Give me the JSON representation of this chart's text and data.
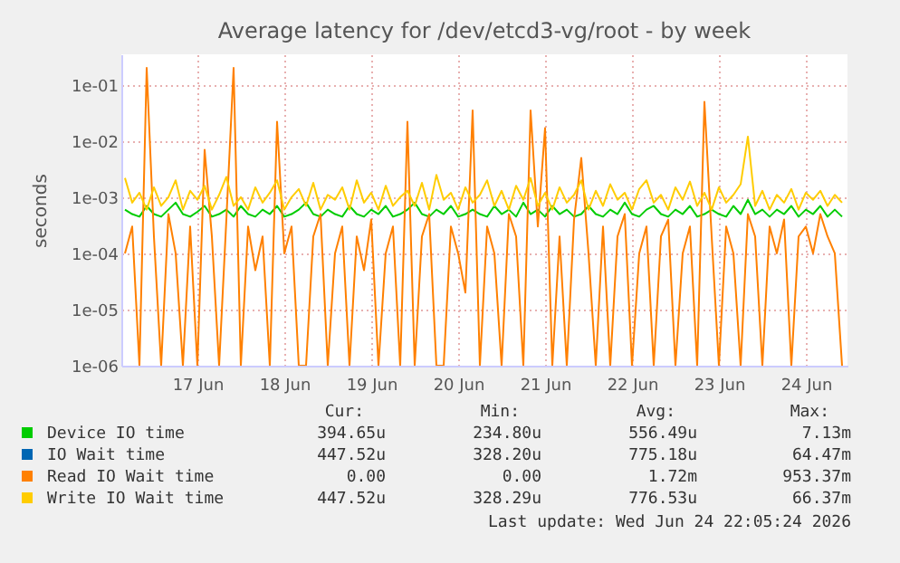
{
  "chart_data": {
    "type": "line",
    "title": "Average latency for /dev/etcd3-vg/root - by week",
    "ylabel": "seconds",
    "log": true,
    "grid": true,
    "legend": "bottom",
    "marker": "none",
    "line_style": "solid",
    "xlim": [
      "2026-06-16T15:00",
      "2026-06-24T23:30"
    ],
    "xticks": [
      {
        "value": "2026-06-17T12:00",
        "label": "17 Jun"
      },
      {
        "value": "2026-06-18T12:00",
        "label": "18 Jun"
      },
      {
        "value": "2026-06-19T12:00",
        "label": "19 Jun"
      },
      {
        "value": "2026-06-20T12:00",
        "label": "20 Jun"
      },
      {
        "value": "2026-06-21T12:00",
        "label": "21 Jun"
      },
      {
        "value": "2026-06-22T12:00",
        "label": "22 Jun"
      },
      {
        "value": "2026-06-23T12:00",
        "label": "23 Jun"
      },
      {
        "value": "2026-06-24T12:00",
        "label": "24 Jun"
      }
    ],
    "ylim": [
      1e-06,
      0.35
    ],
    "yticks": [
      {
        "value": 1e-06,
        "label": "1e-06"
      },
      {
        "value": 1e-05,
        "label": "1e-05"
      },
      {
        "value": 0.0001,
        "label": "1e-04"
      },
      {
        "value": 0.001,
        "label": "1e-03"
      },
      {
        "value": 0.01,
        "label": "1e-02"
      },
      {
        "value": 0.1,
        "label": "1e-01"
      }
    ],
    "x": [
      "2026-06-16T16:00",
      "2026-06-16T18:00",
      "2026-06-16T20:00",
      "2026-06-16T22:00",
      "2026-06-17T00:00",
      "2026-06-17T02:00",
      "2026-06-17T04:00",
      "2026-06-17T06:00",
      "2026-06-17T08:00",
      "2026-06-17T10:00",
      "2026-06-17T12:00",
      "2026-06-17T14:00",
      "2026-06-17T16:00",
      "2026-06-17T18:00",
      "2026-06-17T20:00",
      "2026-06-17T22:00",
      "2026-06-18T00:00",
      "2026-06-18T02:00",
      "2026-06-18T04:00",
      "2026-06-18T06:00",
      "2026-06-18T08:00",
      "2026-06-18T10:00",
      "2026-06-18T12:00",
      "2026-06-18T14:00",
      "2026-06-18T16:00",
      "2026-06-18T18:00",
      "2026-06-18T20:00",
      "2026-06-18T22:00",
      "2026-06-19T00:00",
      "2026-06-19T02:00",
      "2026-06-19T04:00",
      "2026-06-19T06:00",
      "2026-06-19T08:00",
      "2026-06-19T10:00",
      "2026-06-19T12:00",
      "2026-06-19T14:00",
      "2026-06-19T16:00",
      "2026-06-19T18:00",
      "2026-06-19T20:00",
      "2026-06-19T22:00",
      "2026-06-20T00:00",
      "2026-06-20T02:00",
      "2026-06-20T04:00",
      "2026-06-20T06:00",
      "2026-06-20T08:00",
      "2026-06-20T10:00",
      "2026-06-20T12:00",
      "2026-06-20T14:00",
      "2026-06-20T16:00",
      "2026-06-20T18:00",
      "2026-06-20T20:00",
      "2026-06-20T22:00",
      "2026-06-21T00:00",
      "2026-06-21T02:00",
      "2026-06-21T04:00",
      "2026-06-21T06:00",
      "2026-06-21T08:00",
      "2026-06-21T10:00",
      "2026-06-21T12:00",
      "2026-06-21T14:00",
      "2026-06-21T16:00",
      "2026-06-21T18:00",
      "2026-06-21T20:00",
      "2026-06-21T22:00",
      "2026-06-22T00:00",
      "2026-06-22T02:00",
      "2026-06-22T04:00",
      "2026-06-22T06:00",
      "2026-06-22T08:00",
      "2026-06-22T10:00",
      "2026-06-22T12:00",
      "2026-06-22T14:00",
      "2026-06-22T16:00",
      "2026-06-22T18:00",
      "2026-06-22T20:00",
      "2026-06-22T22:00",
      "2026-06-23T00:00",
      "2026-06-23T02:00",
      "2026-06-23T04:00",
      "2026-06-23T06:00",
      "2026-06-23T08:00",
      "2026-06-23T10:00",
      "2026-06-23T12:00",
      "2026-06-23T14:00",
      "2026-06-23T16:00",
      "2026-06-23T18:00",
      "2026-06-23T20:00",
      "2026-06-23T22:00",
      "2026-06-24T00:00",
      "2026-06-24T02:00",
      "2026-06-24T04:00",
      "2026-06-24T06:00",
      "2026-06-24T08:00",
      "2026-06-24T10:00",
      "2026-06-24T12:00",
      "2026-06-24T14:00",
      "2026-06-24T16:00",
      "2026-06-24T18:00",
      "2026-06-24T20:00",
      "2026-06-24T22:00"
    ],
    "series": [
      {
        "name": "Device IO time",
        "color": "#00cc00",
        "values": [
          0.0006,
          0.0005,
          0.00045,
          0.0007,
          0.0005,
          0.00045,
          0.0006,
          0.0008,
          0.0005,
          0.00045,
          0.00055,
          0.0007,
          0.00045,
          0.0005,
          0.0006,
          0.00045,
          0.0007,
          0.0005,
          0.00045,
          0.0006,
          0.0005,
          0.0007,
          0.00045,
          0.0005,
          0.0006,
          0.0008,
          0.0005,
          0.00045,
          0.0006,
          0.0005,
          0.00045,
          0.0007,
          0.0005,
          0.00045,
          0.0006,
          0.0005,
          0.0007,
          0.00045,
          0.0005,
          0.0006,
          0.0008,
          0.0005,
          0.00045,
          0.0006,
          0.0005,
          0.0007,
          0.00045,
          0.0005,
          0.0006,
          0.0005,
          0.00045,
          0.0007,
          0.0005,
          0.0006,
          0.00045,
          0.0008,
          0.0005,
          0.0006,
          0.00045,
          0.0007,
          0.0005,
          0.0006,
          0.00045,
          0.0005,
          0.0007,
          0.0005,
          0.00045,
          0.0006,
          0.0005,
          0.0008,
          0.0005,
          0.00045,
          0.0006,
          0.0007,
          0.0005,
          0.00045,
          0.0006,
          0.0005,
          0.0007,
          0.00045,
          0.0005,
          0.0006,
          0.0005,
          0.00045,
          0.0007,
          0.0005,
          0.0009,
          0.0005,
          0.0006,
          0.00045,
          0.0006,
          0.0005,
          0.0007,
          0.00045,
          0.0006,
          0.0005,
          0.0007,
          0.00045,
          0.0006,
          0.00045
        ]
      },
      {
        "name": "IO Wait time",
        "color": "#0066b3",
        "values": [
          null,
          null,
          null,
          null,
          null,
          null,
          null,
          null,
          null,
          null,
          null,
          null,
          null,
          null,
          null,
          null,
          null,
          null,
          null,
          null,
          null,
          null,
          null,
          null,
          null,
          null,
          null,
          null,
          null,
          null,
          null,
          null,
          null,
          null,
          null,
          null,
          null,
          null,
          null,
          null,
          null,
          null,
          null,
          null,
          null,
          null,
          null,
          null,
          null,
          null,
          null,
          null,
          null,
          null,
          null,
          null,
          null,
          null,
          null,
          null,
          null,
          null,
          null,
          null,
          null,
          null,
          null,
          null,
          null,
          null,
          null,
          null,
          null,
          null,
          null,
          null,
          null,
          null,
          null,
          null,
          null,
          null,
          null,
          null,
          null,
          null,
          null,
          null,
          null,
          null,
          null,
          null,
          null,
          null,
          null,
          null,
          null,
          null,
          null,
          null
        ]
      },
      {
        "name": "Read IO Wait time",
        "color": "#ff8000",
        "values": [
          0.0001,
          0.0003,
          1e-06,
          0.2,
          0.0002,
          1e-06,
          0.0005,
          0.0001,
          1e-06,
          0.0003,
          1e-06,
          0.007,
          0.0002,
          1e-06,
          0.0004,
          0.2,
          1e-06,
          0.0003,
          5e-05,
          0.0002,
          1e-06,
          0.022,
          0.0001,
          0.0003,
          1e-06,
          1e-06,
          0.0002,
          0.0005,
          1e-06,
          0.0001,
          0.0003,
          1e-06,
          0.0002,
          5e-05,
          0.0004,
          1e-06,
          0.0001,
          0.0003,
          1e-06,
          0.022,
          1e-06,
          0.0002,
          0.0005,
          1e-06,
          1e-06,
          0.0003,
          0.0001,
          2e-05,
          0.035,
          1e-06,
          0.0003,
          0.0001,
          1e-06,
          0.0005,
          0.0002,
          1e-06,
          0.035,
          0.0003,
          0.017,
          1e-06,
          0.0002,
          1e-06,
          0.0004,
          0.005,
          0.0001,
          1e-06,
          0.0003,
          1e-06,
          0.0002,
          0.0005,
          1e-06,
          0.0001,
          0.0003,
          1e-06,
          0.0002,
          0.0004,
          1e-06,
          0.0001,
          0.0003,
          1e-06,
          0.05,
          0.0002,
          1e-06,
          0.0003,
          0.0001,
          1e-06,
          0.0005,
          0.0002,
          1e-06,
          0.0003,
          0.0001,
          0.0004,
          1e-06,
          0.0002,
          0.0003,
          0.0001,
          0.0005,
          0.0002,
          0.0001,
          1e-06
        ]
      },
      {
        "name": "Write IO Wait time",
        "color": "#ffcc00",
        "values": [
          0.0022,
          0.0008,
          0.0012,
          0.0006,
          0.0015,
          0.0007,
          0.001,
          0.002,
          0.0006,
          0.0013,
          0.0009,
          0.0016,
          0.0006,
          0.0011,
          0.0023,
          0.0007,
          0.001,
          0.0006,
          0.0015,
          0.0008,
          0.0012,
          0.002,
          0.0006,
          0.001,
          0.0014,
          0.0007,
          0.0018,
          0.0006,
          0.0011,
          0.0009,
          0.0015,
          0.0006,
          0.002,
          0.0008,
          0.0012,
          0.0006,
          0.0016,
          0.0007,
          0.001,
          0.0013,
          0.0007,
          0.0018,
          0.0006,
          0.0025,
          0.0009,
          0.0012,
          0.0006,
          0.0015,
          0.0008,
          0.0011,
          0.002,
          0.0007,
          0.0013,
          0.0006,
          0.0016,
          0.0009,
          0.0022,
          0.0007,
          0.0012,
          0.0006,
          0.0015,
          0.0008,
          0.0011,
          0.002,
          0.0006,
          0.0013,
          0.0007,
          0.0017,
          0.0009,
          0.0012,
          0.0006,
          0.0014,
          0.002,
          0.0008,
          0.0011,
          0.0006,
          0.0015,
          0.0009,
          0.0019,
          0.0007,
          0.0012,
          0.0006,
          0.0015,
          0.0008,
          0.0011,
          0.0017,
          0.012,
          0.0007,
          0.0013,
          0.0006,
          0.0011,
          0.0008,
          0.0014,
          0.0006,
          0.0012,
          0.0009,
          0.0013,
          0.0007,
          0.0011,
          0.0008
        ]
      }
    ],
    "annotations": [
      "Cur:",
      "Min:",
      "Avg:",
      "Max:",
      "394.65u",
      "234.80u",
      "556.49u",
      "7.13m",
      "447.52u",
      "328.20u",
      "775.18u",
      "64.47m",
      "0.00",
      "0.00",
      "1.72m",
      "953.37m",
      "447.52u",
      "328.29u",
      "776.53u",
      "66.37m",
      "Last update: Wed Jun 24 22:05:24 2026"
    ]
  }
}
